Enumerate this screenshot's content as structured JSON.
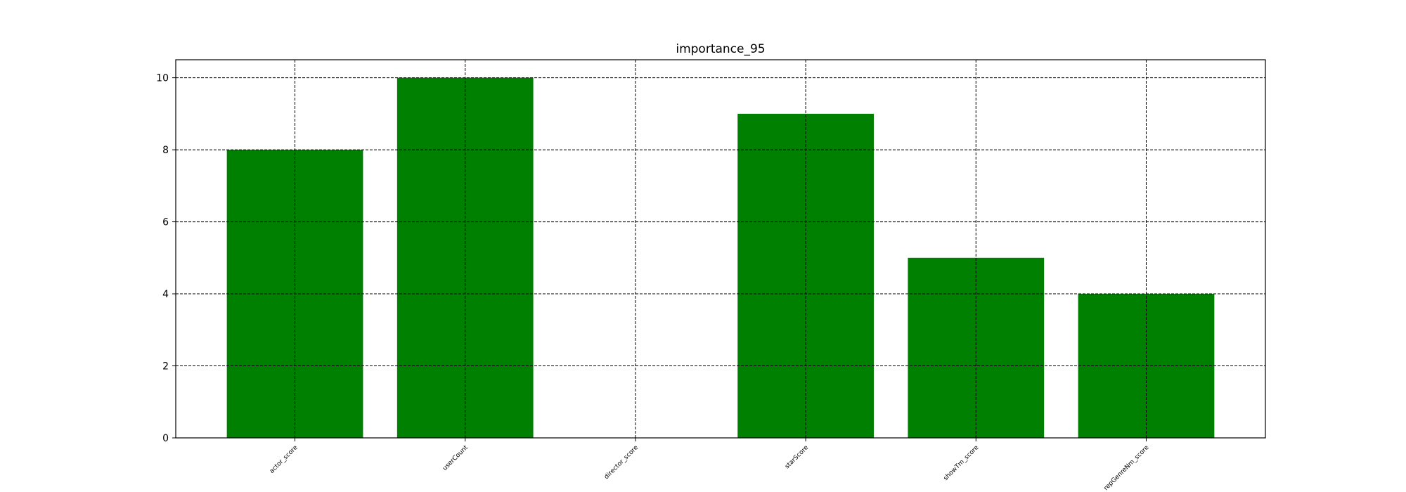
{
  "chart_data": {
    "type": "bar",
    "title": "importance_95",
    "xlabel": "",
    "ylabel": "",
    "categories": [
      "actor_score",
      "userCount",
      "director_score",
      "starScore",
      "showTm_score",
      "repGenreNm_score"
    ],
    "values": [
      8,
      10,
      0,
      9,
      5,
      4
    ],
    "ylim": [
      0,
      10.5
    ],
    "yticks": [
      0,
      2,
      4,
      6,
      8,
      10
    ],
    "grid": true,
    "grid_style": "dashed",
    "legend": "none",
    "bar_color": "#008000",
    "xtick_rotation": -45
  }
}
